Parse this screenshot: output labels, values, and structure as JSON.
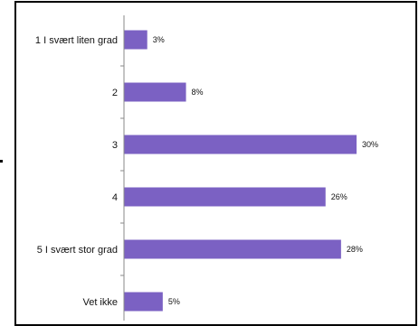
{
  "chart_data": {
    "type": "bar",
    "orientation": "horizontal",
    "categories": [
      "1 I svært liten grad",
      "2",
      "3",
      "4",
      "5 I svært stor grad",
      "Vet ikke"
    ],
    "values": [
      3,
      8,
      30,
      26,
      28,
      5
    ],
    "value_labels": [
      "3%",
      "8%",
      "30%",
      "26%",
      "28%",
      "5%"
    ],
    "xlim": [
      0,
      32
    ],
    "grid": false,
    "bar_color": "#7B61C3",
    "axis_color": "#8a8a8a"
  }
}
